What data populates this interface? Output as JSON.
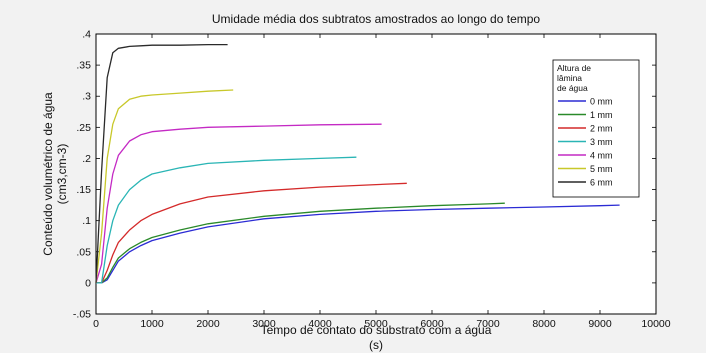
{
  "chart_data": {
    "type": "line",
    "title": "Umidade média dos subtratos amostrados ao longo do tempo",
    "xlabel": "Tempo de contato do substrato com a água",
    "xlabel_unit": "(s)",
    "ylabel": "Conteúdo volumétrico de água",
    "ylabel_unit": "(cm3,cm-3)",
    "xlim": [
      0,
      10000
    ],
    "ylim": [
      -0.05,
      0.4
    ],
    "xticks": [
      0,
      1000,
      2000,
      3000,
      4000,
      5000,
      6000,
      7000,
      8000,
      9000,
      10000
    ],
    "yticks": [
      -0.05,
      0,
      0.05,
      0.1,
      0.15,
      0.2,
      0.25,
      0.3,
      0.35,
      0.4
    ],
    "grid": false,
    "legend": {
      "title": "Altura de lâmina de água",
      "title_lines": [
        "Altura de",
        "lâmina",
        "de água"
      ],
      "placement": "right"
    },
    "series": [
      {
        "name": "0 mm",
        "color": "#2b2bd4",
        "x": [
          0,
          100,
          200,
          300,
          400,
          600,
          800,
          1000,
          1500,
          2000,
          3000,
          4000,
          5000,
          6000,
          7000,
          8000,
          9000,
          9350
        ],
        "y": [
          0,
          0,
          0.005,
          0.02,
          0.035,
          0.05,
          0.06,
          0.068,
          0.08,
          0.09,
          0.103,
          0.11,
          0.115,
          0.118,
          0.12,
          0.122,
          0.124,
          0.125
        ]
      },
      {
        "name": "1 mm",
        "color": "#2a8a2a",
        "x": [
          0,
          100,
          200,
          300,
          400,
          600,
          800,
          1000,
          1500,
          2000,
          3000,
          4000,
          5000,
          6000,
          7000,
          7300
        ],
        "y": [
          0,
          0,
          0.008,
          0.025,
          0.04,
          0.055,
          0.065,
          0.073,
          0.085,
          0.095,
          0.107,
          0.115,
          0.12,
          0.124,
          0.127,
          0.128
        ]
      },
      {
        "name": "2 mm",
        "color": "#d42a2a",
        "x": [
          0,
          100,
          200,
          300,
          400,
          600,
          800,
          1000,
          1500,
          2000,
          3000,
          4000,
          5000,
          5550
        ],
        "y": [
          0,
          0,
          0.02,
          0.045,
          0.065,
          0.085,
          0.1,
          0.11,
          0.127,
          0.138,
          0.148,
          0.154,
          0.158,
          0.16
        ]
      },
      {
        "name": "3 mm",
        "color": "#2ab5b5",
        "x": [
          0,
          100,
          200,
          300,
          400,
          600,
          800,
          1000,
          1500,
          2000,
          3000,
          4000,
          4650
        ],
        "y": [
          0,
          0,
          0.06,
          0.1,
          0.125,
          0.15,
          0.165,
          0.175,
          0.185,
          0.192,
          0.197,
          0.2,
          0.202
        ]
      },
      {
        "name": "4 mm",
        "color": "#c42ac4",
        "x": [
          0,
          100,
          200,
          300,
          400,
          600,
          800,
          1000,
          1500,
          2000,
          3000,
          4000,
          5100
        ],
        "y": [
          0,
          0.03,
          0.12,
          0.175,
          0.205,
          0.228,
          0.238,
          0.243,
          0.247,
          0.25,
          0.252,
          0.254,
          0.255
        ]
      },
      {
        "name": "5 mm",
        "color": "#c8c82a",
        "x": [
          0,
          100,
          200,
          300,
          400,
          600,
          800,
          1000,
          1500,
          2000,
          2450
        ],
        "y": [
          0,
          0.08,
          0.2,
          0.255,
          0.28,
          0.295,
          0.3,
          0.302,
          0.305,
          0.308,
          0.31
        ]
      },
      {
        "name": "6 mm",
        "color": "#2a2a2a",
        "x": [
          0,
          100,
          200,
          300,
          400,
          600,
          800,
          1000,
          1500,
          2000,
          2350
        ],
        "y": [
          0,
          0.18,
          0.33,
          0.37,
          0.377,
          0.38,
          0.381,
          0.382,
          0.382,
          0.383,
          0.383
        ]
      }
    ]
  }
}
